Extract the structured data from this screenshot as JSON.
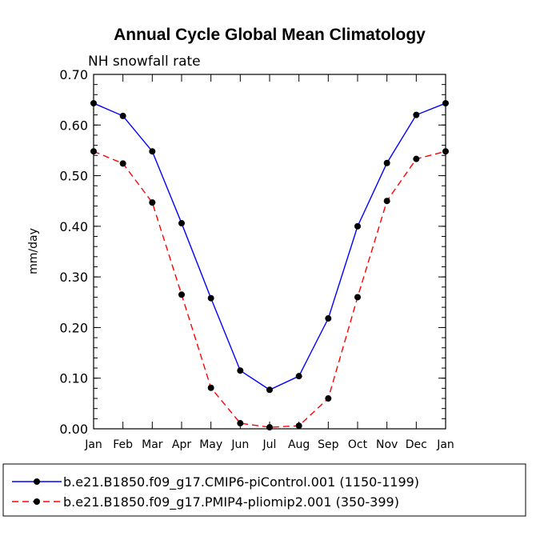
{
  "chart_data": {
    "type": "line",
    "title": "Annual Cycle Global Mean Climatology",
    "subtitle": "NH snowfall rate",
    "ylabel": "mm/day",
    "xlabel": "",
    "ylim": [
      0,
      0.7
    ],
    "yticks": [
      "0.00",
      "0.10",
      "0.20",
      "0.30",
      "0.40",
      "0.50",
      "0.60",
      "0.70"
    ],
    "categories": [
      "Jan",
      "Feb",
      "Mar",
      "Apr",
      "May",
      "Jun",
      "Jul",
      "Aug",
      "Sep",
      "Oct",
      "Nov",
      "Dec",
      "Jan"
    ],
    "series": [
      {
        "name": "b.e21.B1850.f09_g17.CMIP6-piControl.001 (1150-1199)",
        "color": "#0000ff",
        "dash": "solid",
        "values": [
          0.643,
          0.618,
          0.548,
          0.406,
          0.258,
          0.115,
          0.077,
          0.104,
          0.218,
          0.4,
          0.525,
          0.62,
          0.643
        ]
      },
      {
        "name": "b.e21.B1850.f09_g17.PMIP4-pliomip2.001 (350-399)",
        "color": "#ff0000",
        "dash": "dashed",
        "values": [
          0.548,
          0.524,
          0.447,
          0.265,
          0.081,
          0.011,
          0.003,
          0.006,
          0.06,
          0.26,
          0.45,
          0.533,
          0.548
        ]
      }
    ],
    "legend_position": "bottom"
  }
}
